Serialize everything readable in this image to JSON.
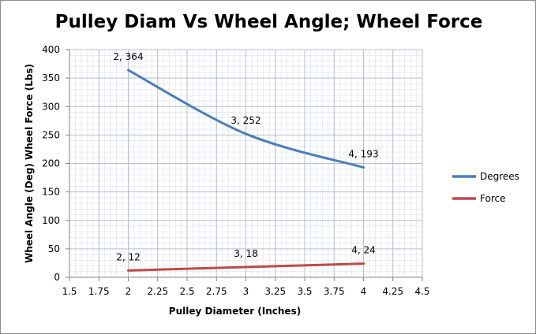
{
  "chart_data": {
    "type": "line",
    "title": "Pulley Diam Vs Wheel Angle; Wheel Force",
    "xlabel": "Pulley Diameter (Inches)",
    "ylabel": "Wheel Angle (Deg) Wheel Force (Lbs)",
    "xlim": [
      1.5,
      4.5
    ],
    "ylim": [
      0,
      400
    ],
    "x_ticks": [
      "1.5",
      "1.75",
      "2",
      "2.25",
      "2.5",
      "2.75",
      "3",
      "3.25",
      "3.5",
      "3.75",
      "4",
      "4.25",
      "4.5"
    ],
    "y_ticks": [
      "0",
      "50",
      "100",
      "150",
      "200",
      "250",
      "300",
      "350",
      "400"
    ],
    "grid": true,
    "legend_position": "right",
    "series": [
      {
        "name": "Degrees",
        "color": "#4a7ebb",
        "smooth": true,
        "x": [
          2,
          3,
          4
        ],
        "y": [
          364,
          252,
          193
        ],
        "labels": [
          "2, 364",
          "3, 252",
          "4, 193"
        ]
      },
      {
        "name": "Force",
        "color": "#be4b48",
        "smooth": true,
        "x": [
          2,
          3,
          4
        ],
        "y": [
          12,
          18,
          24
        ],
        "labels": [
          "2, 12",
          "3, 18",
          "4, 24"
        ]
      }
    ]
  }
}
